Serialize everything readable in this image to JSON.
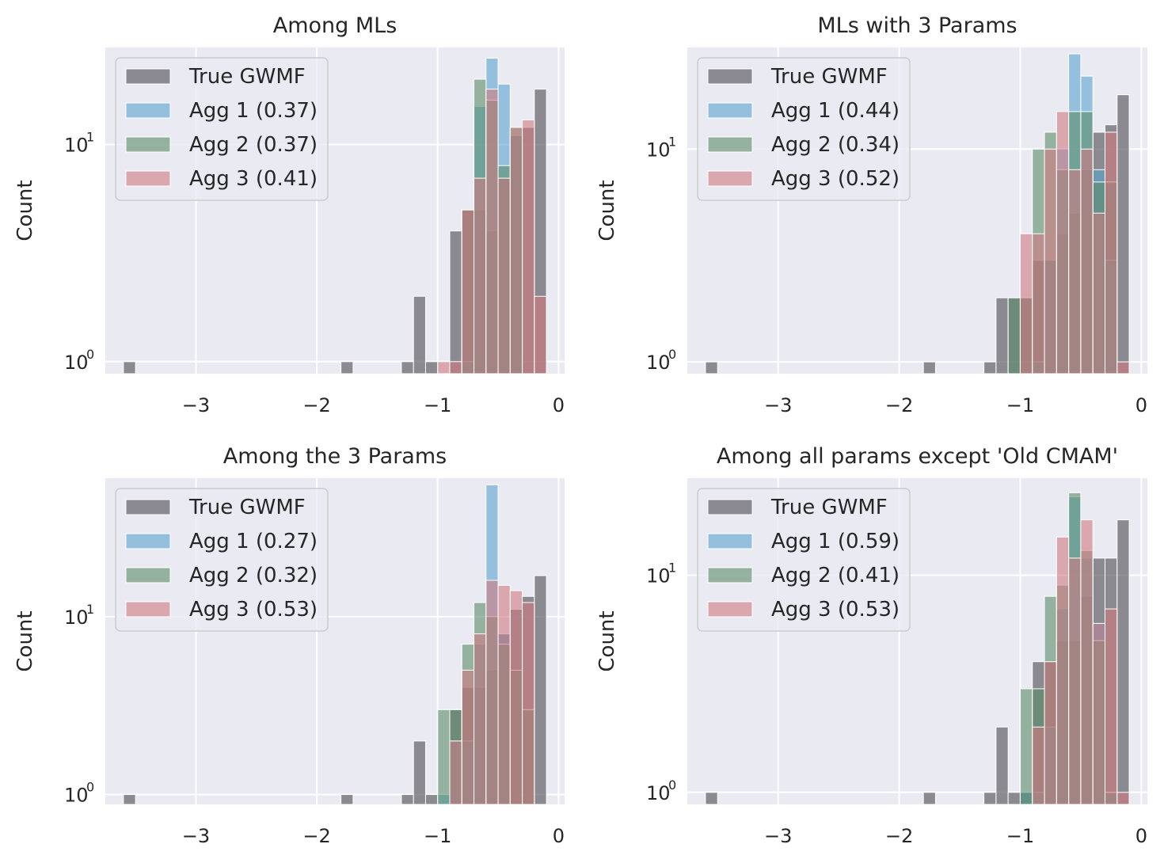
{
  "chart_data": [
    {
      "type": "histogram",
      "title": "Among MLs",
      "xlabel": "",
      "ylabel": "Count",
      "yscale": "log",
      "xlim": [
        -3.75,
        0.05
      ],
      "ylim": [
        0.88,
        28
      ],
      "xticks": [
        -3,
        -2,
        -1,
        0
      ],
      "bin_width": 0.1,
      "legend": "top-left",
      "series": [
        {
          "name": "True GWMF",
          "color": "#4a4a4f",
          "bins": [
            {
              "x": -3.55,
              "count": 1
            },
            {
              "x": -1.75,
              "count": 1
            },
            {
              "x": -1.25,
              "count": 1
            },
            {
              "x": -1.15,
              "count": 2
            },
            {
              "x": -1.05,
              "count": 1
            },
            {
              "x": -0.85,
              "count": 4
            },
            {
              "x": -0.75,
              "count": 5
            },
            {
              "x": -0.65,
              "count": 5
            },
            {
              "x": -0.55,
              "count": 4
            },
            {
              "x": -0.45,
              "count": 7
            },
            {
              "x": -0.35,
              "count": 11
            },
            {
              "x": -0.25,
              "count": 12
            },
            {
              "x": -0.15,
              "count": 18
            }
          ]
        },
        {
          "name": "Agg 1 (0.37)",
          "color": "#5ba3cf",
          "bins": [
            {
              "x": -0.75,
              "count": 1
            },
            {
              "x": -0.65,
              "count": 15
            },
            {
              "x": -0.55,
              "count": 25
            },
            {
              "x": -0.45,
              "count": 19
            },
            {
              "x": -0.35,
              "count": 11
            }
          ]
        },
        {
          "name": "Agg 2 (0.37)",
          "color": "#5c8c6a",
          "bins": [
            {
              "x": -0.75,
              "count": 5
            },
            {
              "x": -0.65,
              "count": 20
            },
            {
              "x": -0.55,
              "count": 16
            },
            {
              "x": -0.45,
              "count": 8
            },
            {
              "x": -0.35,
              "count": 12
            }
          ]
        },
        {
          "name": "Agg 3 (0.41)",
          "color": "#d17a80",
          "bins": [
            {
              "x": -0.95,
              "count": 1
            },
            {
              "x": -0.85,
              "count": 1
            },
            {
              "x": -0.75,
              "count": 5
            },
            {
              "x": -0.65,
              "count": 7
            },
            {
              "x": -0.55,
              "count": 18
            },
            {
              "x": -0.45,
              "count": 7
            },
            {
              "x": -0.35,
              "count": 12
            },
            {
              "x": -0.25,
              "count": 13
            },
            {
              "x": -0.15,
              "count": 2
            }
          ]
        }
      ]
    },
    {
      "type": "histogram",
      "title": "MLs with 3 Params",
      "xlabel": "",
      "ylabel": "Count",
      "yscale": "log",
      "xlim": [
        -3.75,
        0.05
      ],
      "ylim": [
        0.88,
        30
      ],
      "xticks": [
        -3,
        -2,
        -1,
        0
      ],
      "bin_width": 0.1,
      "legend": "top-left",
      "series": [
        {
          "name": "True GWMF",
          "color": "#4a4a4f",
          "bins": [
            {
              "x": -3.55,
              "count": 1
            },
            {
              "x": -1.75,
              "count": 1
            },
            {
              "x": -1.25,
              "count": 1
            },
            {
              "x": -1.15,
              "count": 2
            },
            {
              "x": -1.05,
              "count": 2
            },
            {
              "x": -0.95,
              "count": 2
            },
            {
              "x": -0.85,
              "count": 3
            },
            {
              "x": -0.75,
              "count": 3
            },
            {
              "x": -0.65,
              "count": 4
            },
            {
              "x": -0.55,
              "count": 5
            },
            {
              "x": -0.45,
              "count": 8
            },
            {
              "x": -0.35,
              "count": 12
            },
            {
              "x": -0.25,
              "count": 13
            },
            {
              "x": -0.15,
              "count": 18
            }
          ]
        },
        {
          "name": "Agg 1 (0.44)",
          "color": "#5ba3cf",
          "bins": [
            {
              "x": -0.85,
              "count": 1
            },
            {
              "x": -0.75,
              "count": 3
            },
            {
              "x": -0.65,
              "count": 10
            },
            {
              "x": -0.55,
              "count": 28
            },
            {
              "x": -0.45,
              "count": 22
            },
            {
              "x": -0.35,
              "count": 8
            },
            {
              "x": -0.25,
              "count": 3
            }
          ]
        },
        {
          "name": "Agg 2 (0.34)",
          "color": "#5c8c6a",
          "bins": [
            {
              "x": -1.05,
              "count": 2
            },
            {
              "x": -0.95,
              "count": 2
            },
            {
              "x": -0.85,
              "count": 10
            },
            {
              "x": -0.75,
              "count": 12
            },
            {
              "x": -0.65,
              "count": 8
            },
            {
              "x": -0.55,
              "count": 15
            },
            {
              "x": -0.45,
              "count": 15
            },
            {
              "x": -0.35,
              "count": 7
            },
            {
              "x": -0.25,
              "count": 7
            }
          ]
        },
        {
          "name": "Agg 3 (0.52)",
          "color": "#d17a80",
          "bins": [
            {
              "x": -0.95,
              "count": 4
            },
            {
              "x": -0.85,
              "count": 4
            },
            {
              "x": -0.75,
              "count": 10
            },
            {
              "x": -0.65,
              "count": 15
            },
            {
              "x": -0.55,
              "count": 8
            },
            {
              "x": -0.45,
              "count": 10
            },
            {
              "x": -0.35,
              "count": 5
            },
            {
              "x": -0.25,
              "count": 12
            },
            {
              "x": -0.15,
              "count": 1
            }
          ]
        }
      ]
    },
    {
      "type": "histogram",
      "title": "Among the 3 Params",
      "xlabel": "",
      "ylabel": "Count",
      "yscale": "log",
      "xlim": [
        -3.75,
        0.05
      ],
      "ylim": [
        0.88,
        60
      ],
      "xticks": [
        -3,
        -2,
        -1,
        0
      ],
      "bin_width": 0.1,
      "legend": "top-left",
      "series": [
        {
          "name": "True GWMF",
          "color": "#4a4a4f",
          "bins": [
            {
              "x": -3.55,
              "count": 1
            },
            {
              "x": -1.75,
              "count": 1
            },
            {
              "x": -1.25,
              "count": 1
            },
            {
              "x": -1.15,
              "count": 2
            },
            {
              "x": -1.05,
              "count": 1
            },
            {
              "x": -0.85,
              "count": 3
            },
            {
              "x": -0.75,
              "count": 4
            },
            {
              "x": -0.65,
              "count": 4
            },
            {
              "x": -0.55,
              "count": 5
            },
            {
              "x": -0.45,
              "count": 8
            },
            {
              "x": -0.35,
              "count": 11
            },
            {
              "x": -0.25,
              "count": 13
            },
            {
              "x": -0.15,
              "count": 17
            }
          ]
        },
        {
          "name": "Agg 1 (0.27)",
          "color": "#5ba3cf",
          "bins": [
            {
              "x": -0.95,
              "count": 1
            },
            {
              "x": -0.85,
              "count": 2
            },
            {
              "x": -0.75,
              "count": 2
            },
            {
              "x": -0.65,
              "count": 7
            },
            {
              "x": -0.55,
              "count": 55
            },
            {
              "x": -0.45,
              "count": 8
            }
          ]
        },
        {
          "name": "Agg 2 (0.32)",
          "color": "#5c8c6a",
          "bins": [
            {
              "x": -0.95,
              "count": 3
            },
            {
              "x": -0.85,
              "count": 3
            },
            {
              "x": -0.75,
              "count": 7
            },
            {
              "x": -0.65,
              "count": 12
            },
            {
              "x": -0.55,
              "count": 10
            },
            {
              "x": -0.45,
              "count": 7
            },
            {
              "x": -0.35,
              "count": 5
            },
            {
              "x": -0.25,
              "count": 3
            }
          ]
        },
        {
          "name": "Agg 3 (0.53)",
          "color": "#d17a80",
          "bins": [
            {
              "x": -0.85,
              "count": 2
            },
            {
              "x": -0.75,
              "count": 5
            },
            {
              "x": -0.65,
              "count": 8
            },
            {
              "x": -0.55,
              "count": 16
            },
            {
              "x": -0.45,
              "count": 15
            },
            {
              "x": -0.35,
              "count": 14
            },
            {
              "x": -0.25,
              "count": 12
            }
          ]
        }
      ]
    },
    {
      "type": "histogram",
      "title": "Among all params except 'Old CMAM'",
      "xlabel": "",
      "ylabel": "Count",
      "yscale": "log",
      "xlim": [
        -3.75,
        0.05
      ],
      "ylim": [
        0.88,
        28
      ],
      "xticks": [
        -3,
        -2,
        -1,
        0
      ],
      "bin_width": 0.1,
      "legend": "top-left",
      "series": [
        {
          "name": "True GWMF",
          "color": "#4a4a4f",
          "bins": [
            {
              "x": -3.55,
              "count": 1
            },
            {
              "x": -1.75,
              "count": 1
            },
            {
              "x": -1.25,
              "count": 1
            },
            {
              "x": -1.15,
              "count": 2
            },
            {
              "x": -1.05,
              "count": 1
            },
            {
              "x": -0.95,
              "count": 1
            },
            {
              "x": -0.85,
              "count": 4
            },
            {
              "x": -0.75,
              "count": 4
            },
            {
              "x": -0.65,
              "count": 5
            },
            {
              "x": -0.55,
              "count": 5
            },
            {
              "x": -0.45,
              "count": 8
            },
            {
              "x": -0.35,
              "count": 12
            },
            {
              "x": -0.25,
              "count": 12
            },
            {
              "x": -0.15,
              "count": 18
            }
          ]
        },
        {
          "name": "Agg 1 (0.59)",
          "color": "#5ba3cf",
          "bins": [
            {
              "x": -0.95,
              "count": 1
            },
            {
              "x": -0.85,
              "count": 1
            },
            {
              "x": -0.75,
              "count": 2
            },
            {
              "x": -0.65,
              "count": 7
            },
            {
              "x": -0.55,
              "count": 23
            },
            {
              "x": -0.45,
              "count": 12
            },
            {
              "x": -0.35,
              "count": 6
            },
            {
              "x": -0.25,
              "count": 1
            }
          ]
        },
        {
          "name": "Agg 2 (0.41)",
          "color": "#5c8c6a",
          "bins": [
            {
              "x": -0.95,
              "count": 3
            },
            {
              "x": -0.85,
              "count": 3
            },
            {
              "x": -0.75,
              "count": 8
            },
            {
              "x": -0.65,
              "count": 9
            },
            {
              "x": -0.55,
              "count": 24
            },
            {
              "x": -0.45,
              "count": 13
            },
            {
              "x": -0.35,
              "count": 5
            },
            {
              "x": -0.25,
              "count": 1
            }
          ]
        },
        {
          "name": "Agg 3 (0.53)",
          "color": "#d17a80",
          "bins": [
            {
              "x": -0.85,
              "count": 2
            },
            {
              "x": -0.75,
              "count": 4
            },
            {
              "x": -0.65,
              "count": 15
            },
            {
              "x": -0.55,
              "count": 12
            },
            {
              "x": -0.45,
              "count": 18
            },
            {
              "x": -0.35,
              "count": 6
            },
            {
              "x": -0.25,
              "count": 7
            },
            {
              "x": -0.15,
              "count": 1
            }
          ]
        }
      ]
    }
  ]
}
